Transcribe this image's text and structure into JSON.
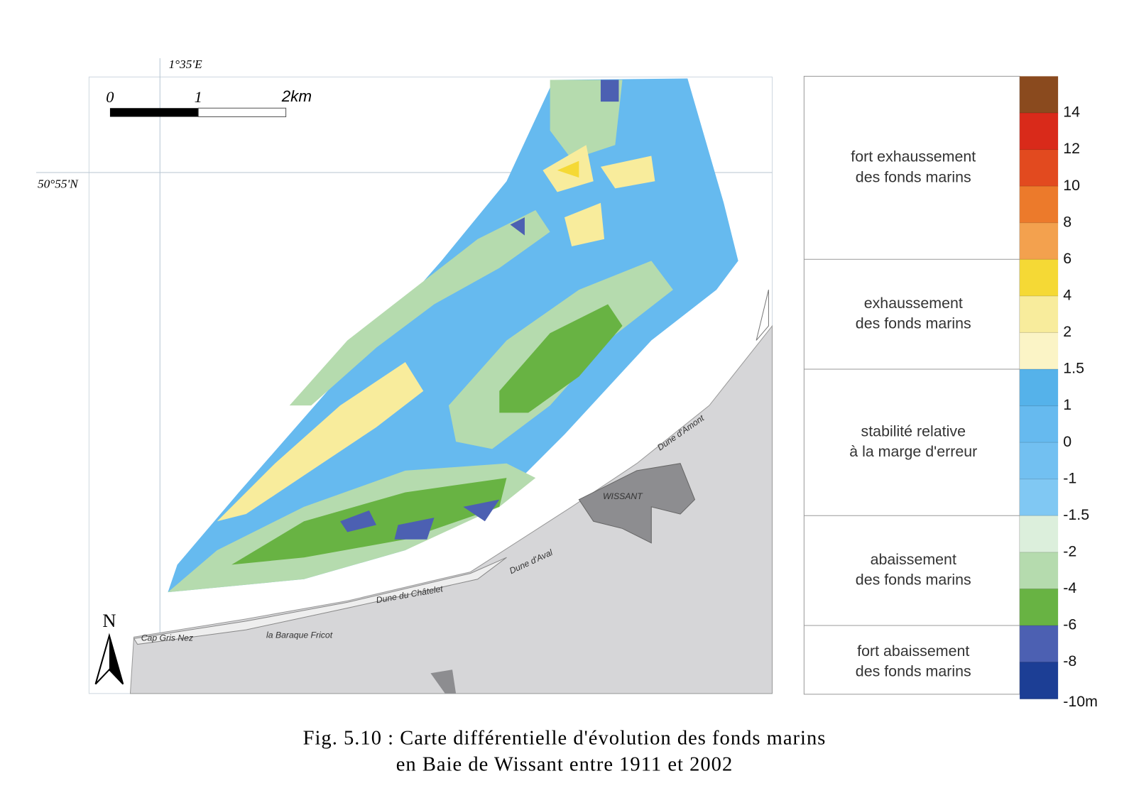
{
  "map": {
    "longitude_label": "1°35'E",
    "latitude_label": "50°55'N",
    "scale_bar": [
      "0",
      "1",
      "2km"
    ],
    "north": "N",
    "places": [
      "Cap Gris Nez",
      "la Baraque Fricot",
      "Dune du Châtelet",
      "Dune d'Aval",
      "WISSANT",
      "Dune d'Amont"
    ]
  },
  "legend": {
    "classes": [
      {
        "lines": [
          "fort exhaussement",
          "des fonds marins"
        ]
      },
      {
        "lines": [
          "exhaussement",
          "des fonds marins"
        ]
      },
      {
        "lines": [
          "stabilité relative",
          "à la marge d'erreur"
        ]
      },
      {
        "lines": [
          "abaissement",
          "des fonds marins"
        ]
      },
      {
        "lines": [
          "fort abaissement",
          "des fonds marins"
        ]
      }
    ],
    "ticks": [
      14,
      12,
      10,
      8,
      6,
      4,
      2,
      1.5,
      1,
      0,
      -1,
      -1.5,
      -2,
      -4,
      -6,
      -8,
      {
        "value": -10,
        "label": "-10m"
      }
    ],
    "band_colors": [
      "#8a4a1e",
      "#d92a1a",
      "#e24a1f",
      "#ec7a2b",
      "#f3a14e",
      "#f5d935",
      "#f8ec9c",
      "#fbf4c6",
      "#55b2ea",
      "#66baef",
      "#72c0f1",
      "#80c8f3",
      "#dcefdc",
      "#b5dbae",
      "#68b343",
      "#4c60b2",
      "#1c3e95"
    ]
  },
  "caption": [
    "Fig. 5.10 : Carte différentielle d'évolution des fonds marins",
    "en Baie de Wissant entre 1911 et 2002"
  ]
}
